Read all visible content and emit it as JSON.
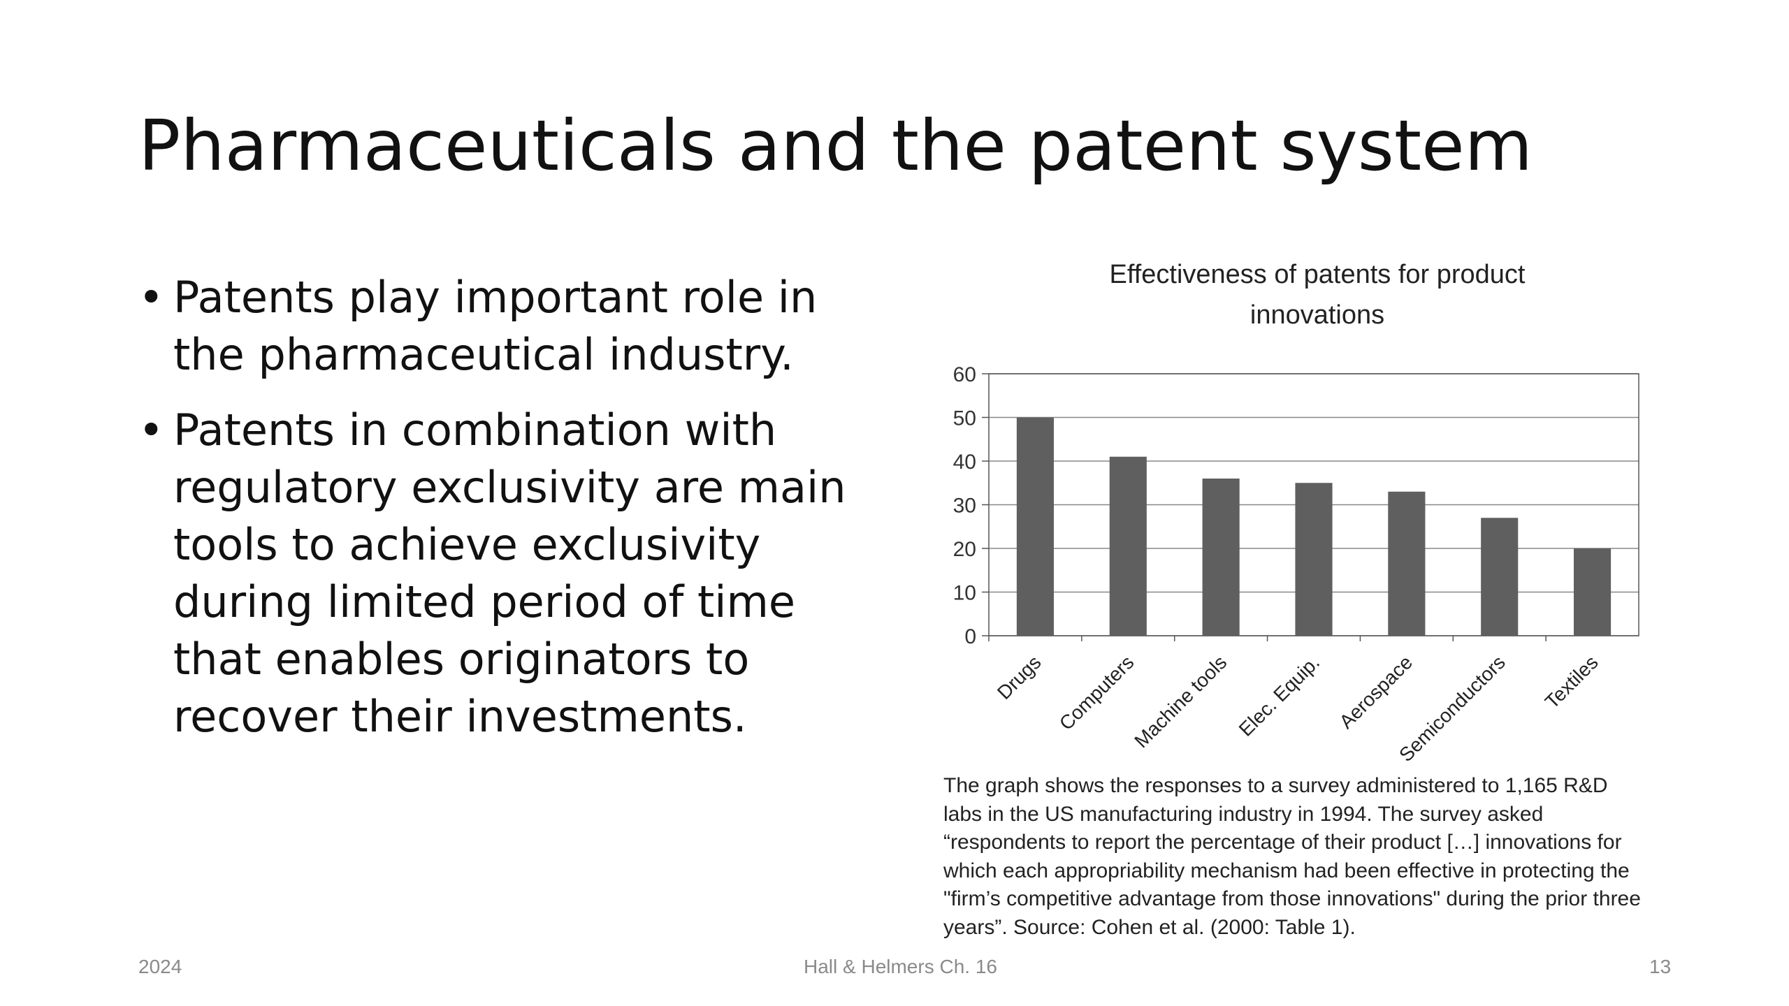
{
  "slide": {
    "title": "Pharmaceuticals and the patent system",
    "bullets": [
      "Patents play important role in the pharmaceutical industry.",
      "Patents in combination with regulatory exclusivity are main tools to achieve exclusivity during limited period of time that enables originators to recover their investments."
    ],
    "bullet_glyph": "•",
    "caption": "The graph shows the responses to a survey administered to 1,165 R&D labs in the US manufacturing industry in 1994. The survey asked “respondents to report the percentage of their product […] innovations for which each appropriability mechanism had been effective in protecting the \"firm’s competitive advantage from those innovations\" during the prior three years”. Source: Cohen et al. (2000: Table 1).",
    "footer": {
      "left": "2024",
      "center": "Hall & Helmers Ch. 16",
      "right": "13"
    }
  },
  "chart_data": {
    "type": "bar",
    "title": "Effectiveness of patents for product innovations",
    "categories": [
      "Drugs",
      "Computers",
      "Machine tools",
      "Elec. Equip.",
      "Aerospace",
      "Semiconductors",
      "Textiles"
    ],
    "values": [
      50,
      41,
      36,
      35,
      33,
      27,
      20
    ],
    "ylim": [
      0,
      60
    ],
    "yticks": [
      0,
      10,
      20,
      30,
      40,
      50,
      60
    ],
    "grid": true,
    "legend": "none",
    "bar_color": "#5f5f5f"
  }
}
